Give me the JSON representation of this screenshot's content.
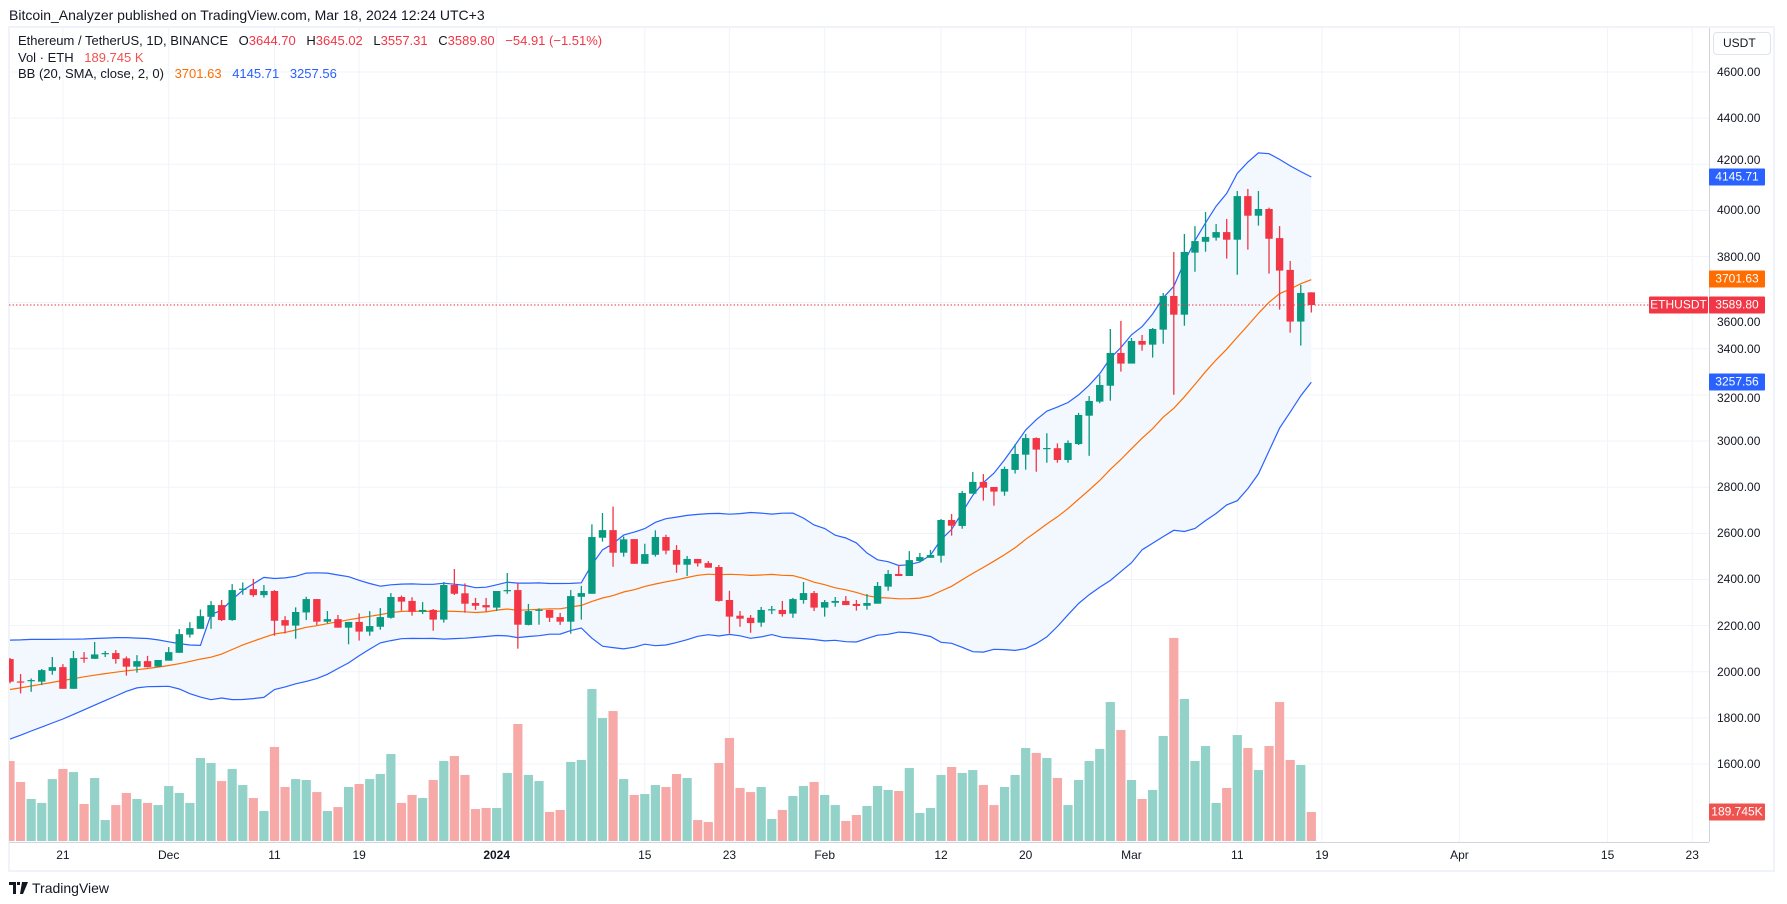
{
  "header": {
    "published": "Bitcoin_Analyzer published on TradingView.com, Mar 18, 2024 12:24 UTC+3"
  },
  "legend": {
    "symbol": "Ethereum / TetherUS, 1D, BINANCE",
    "o_label": "O",
    "open": "3644.70",
    "h_label": "H",
    "high": "3645.02",
    "l_label": "L",
    "low": "3557.31",
    "c_label": "C",
    "close": "3589.80",
    "change": "−54.91 (−1.51%)",
    "vol_label": "Vol · ETH",
    "vol_value": "189.745 K",
    "bb_label": "BB (20, SMA, close, 2, 0)",
    "bb_basis": "3701.63",
    "bb_upper": "4145.71",
    "bb_lower": "3257.56"
  },
  "price_axis": {
    "currency": "USDT",
    "symbol_tag": "ETHUSDT",
    "badges": [
      {
        "name": "bb-upper",
        "label": "4145.71",
        "value": 4145.71,
        "color": "#2962ff"
      },
      {
        "name": "bb-basis",
        "label": "3701.63",
        "value": 3701.63,
        "color": "#ff6d00"
      },
      {
        "name": "last-price",
        "label": "3589.80",
        "value": 3589.8,
        "color": "#f23645"
      },
      {
        "name": "bb-lower",
        "label": "3257.56",
        "value": 3257.56,
        "color": "#2962ff"
      }
    ],
    "volume_badge": {
      "label": "189.745K",
      "value_k": 189.745,
      "color": "#ef5350"
    }
  },
  "branding": {
    "logo_text": "TradingView"
  },
  "colors": {
    "up": "#089981",
    "down": "#f23645",
    "vol_up": "#92d2c8",
    "vol_down": "#f7a9a7",
    "bb_band": "#2962ff",
    "bb_basis": "#ff6d00",
    "band_fill": "#f3f8fe",
    "grid": "#f0f3fa"
  },
  "chart_data": {
    "type": "candlestick",
    "title": "Ethereum / TetherUS, 1D, BINANCE",
    "ylabel": "USDT",
    "ylim": [
      1500,
      4700
    ],
    "y_ticks": [
      "4600.00",
      "4400.00",
      "4200.00",
      "4000.00",
      "3800.00",
      "3600.00",
      "3400.00",
      "3200.00",
      "3000.00",
      "2800.00",
      "2600.00",
      "2400.00",
      "2200.00",
      "2000.00",
      "1800.00",
      "1600.00"
    ],
    "x_ticks": [
      {
        "label": "21",
        "day": 5
      },
      {
        "label": "Dec",
        "day": 15
      },
      {
        "label": "11",
        "day": 25
      },
      {
        "label": "19",
        "day": 33
      },
      {
        "label": "2024",
        "day": 46,
        "bold": true
      },
      {
        "label": "15",
        "day": 60
      },
      {
        "label": "23",
        "day": 68
      },
      {
        "label": "Feb",
        "day": 77
      },
      {
        "label": "12",
        "day": 88
      },
      {
        "label": "20",
        "day": 96
      },
      {
        "label": "Mar",
        "day": 106
      },
      {
        "label": "11",
        "day": 116
      },
      {
        "label": "19",
        "day": 124
      },
      {
        "label": "Apr",
        "day": 137
      },
      {
        "label": "15",
        "day": 151
      },
      {
        "label": "23",
        "day": 159
      }
    ],
    "first_day": "Nov 16, 2023",
    "last_price": 3589.8,
    "ohlc": [
      [
        2055,
        2060,
        1950,
        1957
      ],
      [
        1958,
        1990,
        1906,
        1955
      ],
      [
        1960,
        1971,
        1913,
        1964
      ],
      [
        1957,
        2012,
        1942,
        2007
      ],
      [
        2004,
        2064,
        1987,
        2020
      ],
      [
        2020,
        2033,
        1926,
        1926
      ],
      [
        1926,
        2090,
        1926,
        2059
      ],
      [
        2061,
        2085,
        2039,
        2056
      ],
      [
        2056,
        2129,
        2056,
        2075
      ],
      [
        2077,
        2090,
        2064,
        2081
      ],
      [
        2081,
        2094,
        2035,
        2055
      ],
      [
        2058,
        2066,
        1983,
        2022
      ],
      [
        2022,
        2072,
        1996,
        2046
      ],
      [
        2046,
        2069,
        2019,
        2020
      ],
      [
        2022,
        2051,
        2022,
        2051
      ],
      [
        2048,
        2107,
        2048,
        2085
      ],
      [
        2082,
        2185,
        2082,
        2163
      ],
      [
        2161,
        2215,
        2148,
        2189
      ],
      [
        2186,
        2270,
        2186,
        2241
      ],
      [
        2238,
        2306,
        2186,
        2289
      ],
      [
        2289,
        2311,
        2220,
        2224
      ],
      [
        2224,
        2380,
        2221,
        2354
      ],
      [
        2356,
        2387,
        2334,
        2360
      ],
      [
        2358,
        2402,
        2325,
        2332
      ],
      [
        2332,
        2376,
        2321,
        2350
      ],
      [
        2350,
        2354,
        2156,
        2221
      ],
      [
        2224,
        2241,
        2166,
        2200
      ],
      [
        2200,
        2279,
        2143,
        2259
      ],
      [
        2257,
        2325,
        2224,
        2315
      ],
      [
        2315,
        2315,
        2202,
        2217
      ],
      [
        2217,
        2263,
        2210,
        2228
      ],
      [
        2228,
        2246,
        2191,
        2191
      ],
      [
        2191,
        2216,
        2119,
        2216
      ],
      [
        2216,
        2253,
        2135,
        2174
      ],
      [
        2174,
        2263,
        2156,
        2198
      ],
      [
        2195,
        2276,
        2182,
        2237
      ],
      [
        2234,
        2341,
        2230,
        2324
      ],
      [
        2324,
        2330,
        2265,
        2304
      ],
      [
        2307,
        2323,
        2243,
        2260
      ],
      [
        2260,
        2302,
        2250,
        2268
      ],
      [
        2268,
        2272,
        2178,
        2226
      ],
      [
        2226,
        2389,
        2213,
        2376
      ],
      [
        2376,
        2445,
        2333,
        2338
      ],
      [
        2340,
        2383,
        2256,
        2295
      ],
      [
        2298,
        2320,
        2268,
        2286
      ],
      [
        2289,
        2320,
        2260,
        2279
      ],
      [
        2278,
        2350,
        2263,
        2350
      ],
      [
        2351,
        2428,
        2338,
        2354
      ],
      [
        2354,
        2385,
        2100,
        2204
      ],
      [
        2203,
        2294,
        2201,
        2263
      ],
      [
        2266,
        2275,
        2204,
        2269
      ],
      [
        2268,
        2268,
        2216,
        2234
      ],
      [
        2237,
        2255,
        2203,
        2217
      ],
      [
        2217,
        2354,
        2165,
        2328
      ],
      [
        2325,
        2372,
        2226,
        2341
      ],
      [
        2338,
        2639,
        2338,
        2584
      ],
      [
        2581,
        2688,
        2564,
        2614
      ],
      [
        2614,
        2716,
        2455,
        2516
      ],
      [
        2516,
        2586,
        2499,
        2574
      ],
      [
        2575,
        2575,
        2468,
        2468
      ],
      [
        2468,
        2555,
        2468,
        2510
      ],
      [
        2507,
        2613,
        2499,
        2584
      ],
      [
        2584,
        2594,
        2509,
        2525
      ],
      [
        2528,
        2549,
        2429,
        2464
      ],
      [
        2464,
        2502,
        2415,
        2489
      ],
      [
        2489,
        2489,
        2456,
        2470
      ],
      [
        2471,
        2480,
        2451,
        2451
      ],
      [
        2454,
        2463,
        2304,
        2307
      ],
      [
        2311,
        2351,
        2166,
        2239
      ],
      [
        2243,
        2263,
        2195,
        2230
      ],
      [
        2234,
        2246,
        2169,
        2211
      ],
      [
        2213,
        2281,
        2195,
        2268
      ],
      [
        2266,
        2285,
        2250,
        2271
      ],
      [
        2268,
        2307,
        2239,
        2250
      ],
      [
        2252,
        2320,
        2234,
        2315
      ],
      [
        2311,
        2389,
        2295,
        2341
      ],
      [
        2341,
        2350,
        2263,
        2278
      ],
      [
        2278,
        2311,
        2239,
        2302
      ],
      [
        2299,
        2324,
        2282,
        2307
      ],
      [
        2307,
        2328,
        2289,
        2289
      ],
      [
        2294,
        2311,
        2265,
        2285
      ],
      [
        2286,
        2337,
        2269,
        2298
      ],
      [
        2295,
        2389,
        2295,
        2372
      ],
      [
        2369,
        2441,
        2351,
        2424
      ],
      [
        2424,
        2463,
        2415,
        2415
      ],
      [
        2415,
        2523,
        2415,
        2484
      ],
      [
        2480,
        2515,
        2476,
        2497
      ],
      [
        2494,
        2528,
        2494,
        2506
      ],
      [
        2503,
        2662,
        2473,
        2658
      ],
      [
        2658,
        2684,
        2590,
        2633
      ],
      [
        2632,
        2784,
        2620,
        2775
      ],
      [
        2772,
        2866,
        2772,
        2823
      ],
      [
        2823,
        2857,
        2742,
        2798
      ],
      [
        2801,
        2801,
        2720,
        2781
      ],
      [
        2781,
        2889,
        2763,
        2879
      ],
      [
        2875,
        2987,
        2859,
        2944
      ],
      [
        2941,
        3031,
        2876,
        3013
      ],
      [
        3013,
        3016,
        2867,
        2963
      ],
      [
        2967,
        3034,
        2906,
        2970
      ],
      [
        2969,
        2990,
        2906,
        2918
      ],
      [
        2918,
        3003,
        2906,
        2992
      ],
      [
        2987,
        3122,
        2983,
        3113
      ],
      [
        3110,
        3195,
        2936,
        3174
      ],
      [
        3171,
        3286,
        3164,
        3243
      ],
      [
        3240,
        3486,
        3175,
        3382
      ],
      [
        3382,
        3521,
        3301,
        3336
      ],
      [
        3336,
        3447,
        3336,
        3434
      ],
      [
        3434,
        3460,
        3392,
        3418
      ],
      [
        3418,
        3490,
        3362,
        3486
      ],
      [
        3483,
        3642,
        3422,
        3629
      ],
      [
        3629,
        3820,
        3201,
        3548
      ],
      [
        3548,
        3898,
        3500,
        3820
      ],
      [
        3817,
        3932,
        3734,
        3867
      ],
      [
        3864,
        3993,
        3821,
        3885
      ],
      [
        3882,
        3941,
        3869,
        3906
      ],
      [
        3906,
        3963,
        3791,
        3873
      ],
      [
        3873,
        4084,
        3721,
        4062
      ],
      [
        4062,
        4093,
        3830,
        3977
      ],
      [
        3977,
        4084,
        3934,
        4006
      ],
      [
        4006,
        4012,
        3726,
        3877
      ],
      [
        3880,
        3932,
        3570,
        3739
      ],
      [
        3742,
        3781,
        3470,
        3518
      ],
      [
        3518,
        3677,
        3414,
        3642
      ],
      [
        3644.7,
        3645.02,
        3557.31,
        3589.8
      ]
    ],
    "volume_k": [
      523,
      386,
      275,
      249,
      405,
      471,
      451,
      242,
      412,
      137,
      235,
      314,
      275,
      249,
      235,
      360,
      314,
      249,
      543,
      510,
      392,
      471,
      366,
      281,
      196,
      615,
      353,
      405,
      399,
      320,
      196,
      222,
      353,
      373,
      405,
      438,
      569,
      249,
      301,
      281,
      399,
      523,
      556,
      432,
      209,
      216,
      216,
      445,
      765,
      432,
      392,
      190,
      203,
      517,
      530,
      994,
      804,
      850,
      405,
      301,
      307,
      366,
      353,
      438,
      412,
      137,
      124,
      510,
      674,
      347,
      320,
      353,
      144,
      203,
      294,
      360,
      386,
      301,
      235,
      131,
      170,
      229,
      360,
      334,
      327,
      477,
      183,
      216,
      432,
      484,
      445,
      464,
      366,
      235,
      353,
      432,
      608,
      576,
      543,
      412,
      235,
      399,
      523,
      602,
      909,
      726,
      399,
      275,
      334,
      687,
      1328,
      929,
      523,
      621,
      249,
      347,
      693,
      608,
      464,
      621,
      909,
      530,
      497,
      189.745
    ],
    "bollinger": {
      "length": 20,
      "mult": 2,
      "initial_upper": [
        2137,
        2138,
        2140,
        2140,
        2140,
        2141,
        2141,
        2142,
        2144,
        2146,
        2148,
        2148,
        2146,
        2144,
        2138,
        2130,
        2122,
        2116,
        2114
      ],
      "initial_basis": [
        1923,
        1930,
        1938,
        1946,
        1954,
        1962,
        1970,
        1978,
        1985,
        1992,
        1998,
        2004,
        2009,
        2014,
        2020,
        2027,
        2035,
        2045,
        2055
      ],
      "initial_lower": [
        1708,
        1725,
        1743,
        1760,
        1778,
        1795,
        1815,
        1835,
        1855,
        1875,
        1895,
        1915,
        1930,
        1935,
        1936,
        1937,
        1925,
        1905,
        1890
      ]
    }
  }
}
